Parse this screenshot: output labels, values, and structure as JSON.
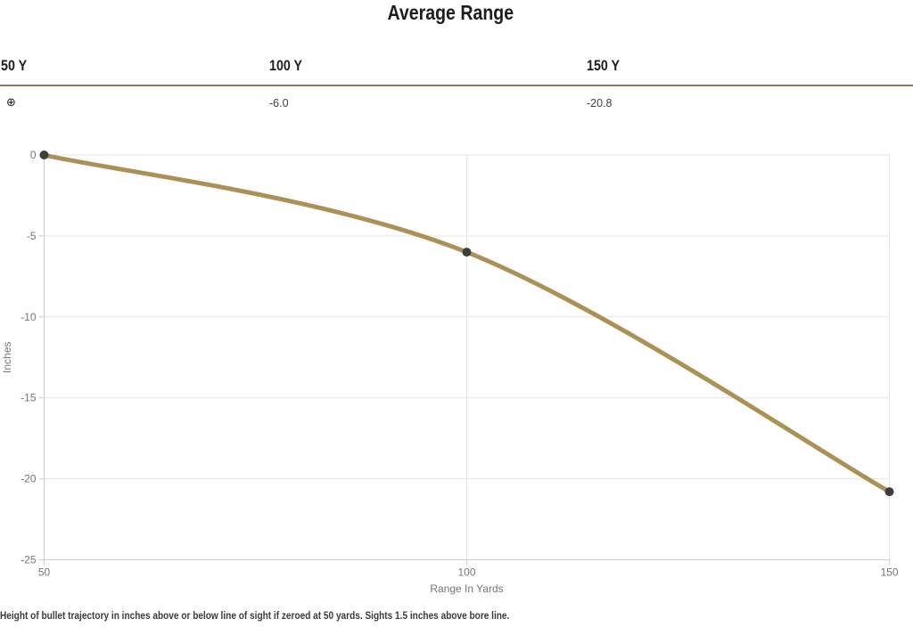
{
  "title": "Average Range",
  "table": {
    "columns": [
      {
        "header": "50 Y",
        "value": "⊕"
      },
      {
        "header": "100 Y",
        "value": "-6.0"
      },
      {
        "header": "150 Y",
        "value": "-20.8"
      }
    ]
  },
  "footer_note": "Height of bullet trajectory in inches above or below line of sight if zeroed at 50 yards. Sights 1.5 inches above bore line.",
  "icons": {
    "zero_marker": "⊕"
  },
  "colors": {
    "title_text": "#1d1d1d",
    "header_text": "#1e1e1e",
    "value_text": "#424242",
    "divider": "#8d7c57",
    "grid": "#e6e6e6",
    "axis": "#cccccc",
    "tick_text": "#757575",
    "line": "#ab9155",
    "point": "#3d3d3d"
  },
  "chart_data": {
    "type": "line",
    "title": "Average Range",
    "x": [
      50,
      100,
      150
    ],
    "series": [
      {
        "name": "Average Range",
        "values": [
          0,
          -6.0,
          -20.8
        ]
      }
    ],
    "xlabel": "Range In Yards",
    "ylabel": "Inches",
    "xlim": [
      50,
      150
    ],
    "ylim": [
      -25,
      0
    ],
    "xticks": [
      50,
      100,
      150
    ],
    "yticks": [
      0,
      -5,
      -10,
      -15,
      -20,
      -25
    ],
    "grid": true,
    "legend": "none",
    "line_color": "#ab9155",
    "point_color": "#3d3d3d"
  }
}
